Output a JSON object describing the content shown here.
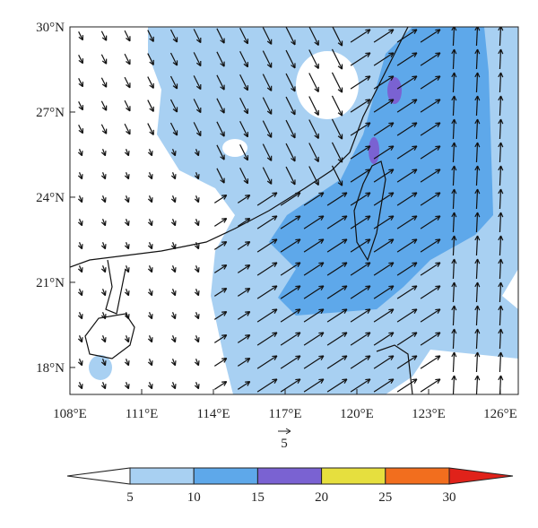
{
  "map": {
    "type": "vector-contour-map",
    "xlim": [
      108,
      126.75
    ],
    "ylim": [
      17.05,
      30
    ],
    "xticks": [
      {
        "value": 108,
        "label": "108°E"
      },
      {
        "value": 111,
        "label": "111°E"
      },
      {
        "value": 114,
        "label": "114°E"
      },
      {
        "value": 117,
        "label": "117°E"
      },
      {
        "value": 120,
        "label": "120°E"
      },
      {
        "value": 123,
        "label": "123°E"
      },
      {
        "value": 126,
        "label": "126°E"
      }
    ],
    "yticks": [
      {
        "value": 18,
        "label": "18°N"
      },
      {
        "value": 21,
        "label": "21°N"
      },
      {
        "value": 24,
        "label": "24°N"
      },
      {
        "value": 27,
        "label": "27°N"
      },
      {
        "value": 30,
        "label": "30°N"
      }
    ],
    "reference_vector": 5,
    "colorbar": {
      "levels": [
        5,
        10,
        15,
        20,
        25,
        30
      ],
      "colors": [
        "#a8d0f2",
        "#5ea8ea",
        "#7a62d2",
        "#e6df3e",
        "#f26e1e"
      ],
      "under_color": "#ffffff",
      "over_color": "#e0221a"
    }
  }
}
